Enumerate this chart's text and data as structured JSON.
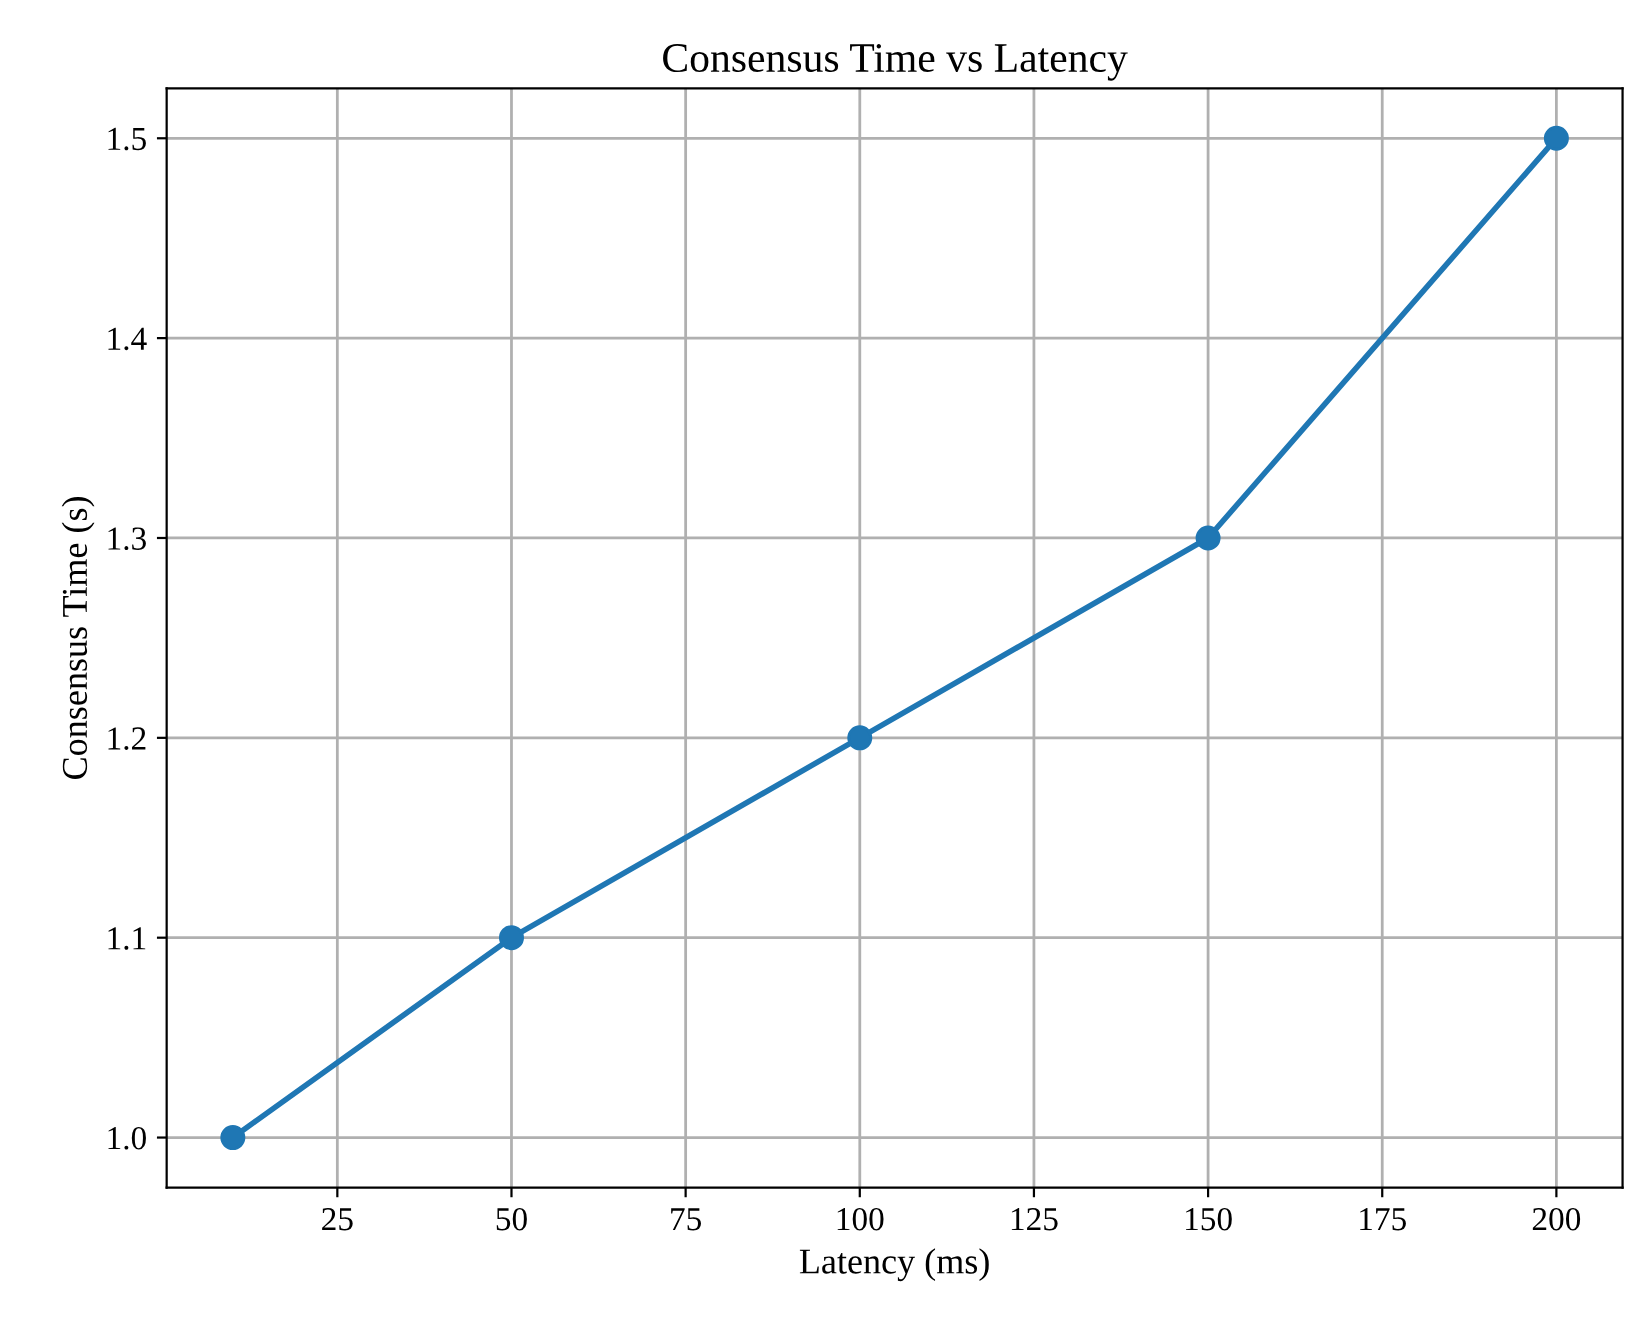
{
  "chart_data": {
    "type": "line",
    "title": "Consensus Time vs Latency",
    "xlabel": "Latency (ms)",
    "ylabel": "Consensus Time (s)",
    "x": [
      10,
      50,
      100,
      150,
      200
    ],
    "series": [
      {
        "color": "#1f77b4",
        "values": [
          1.0,
          1.1,
          1.2,
          1.3,
          1.5
        ]
      }
    ],
    "xlim": [
      0.5,
      209.5
    ],
    "xticks": [
      25,
      50,
      75,
      100,
      125,
      150,
      175,
      200
    ],
    "ylim": [
      0.975,
      1.525
    ],
    "yticks": [
      {
        "value": 1.0,
        "label": "1.0"
      },
      {
        "value": 1.1,
        "label": "1.1"
      },
      {
        "value": 1.2,
        "label": "1.2"
      },
      {
        "value": 1.3,
        "label": "1.3"
      },
      {
        "value": 1.4,
        "label": "1.4"
      },
      {
        "value": 1.5,
        "label": "1.5"
      }
    ],
    "grid": true,
    "marker": "circle",
    "line_style": "solid"
  }
}
